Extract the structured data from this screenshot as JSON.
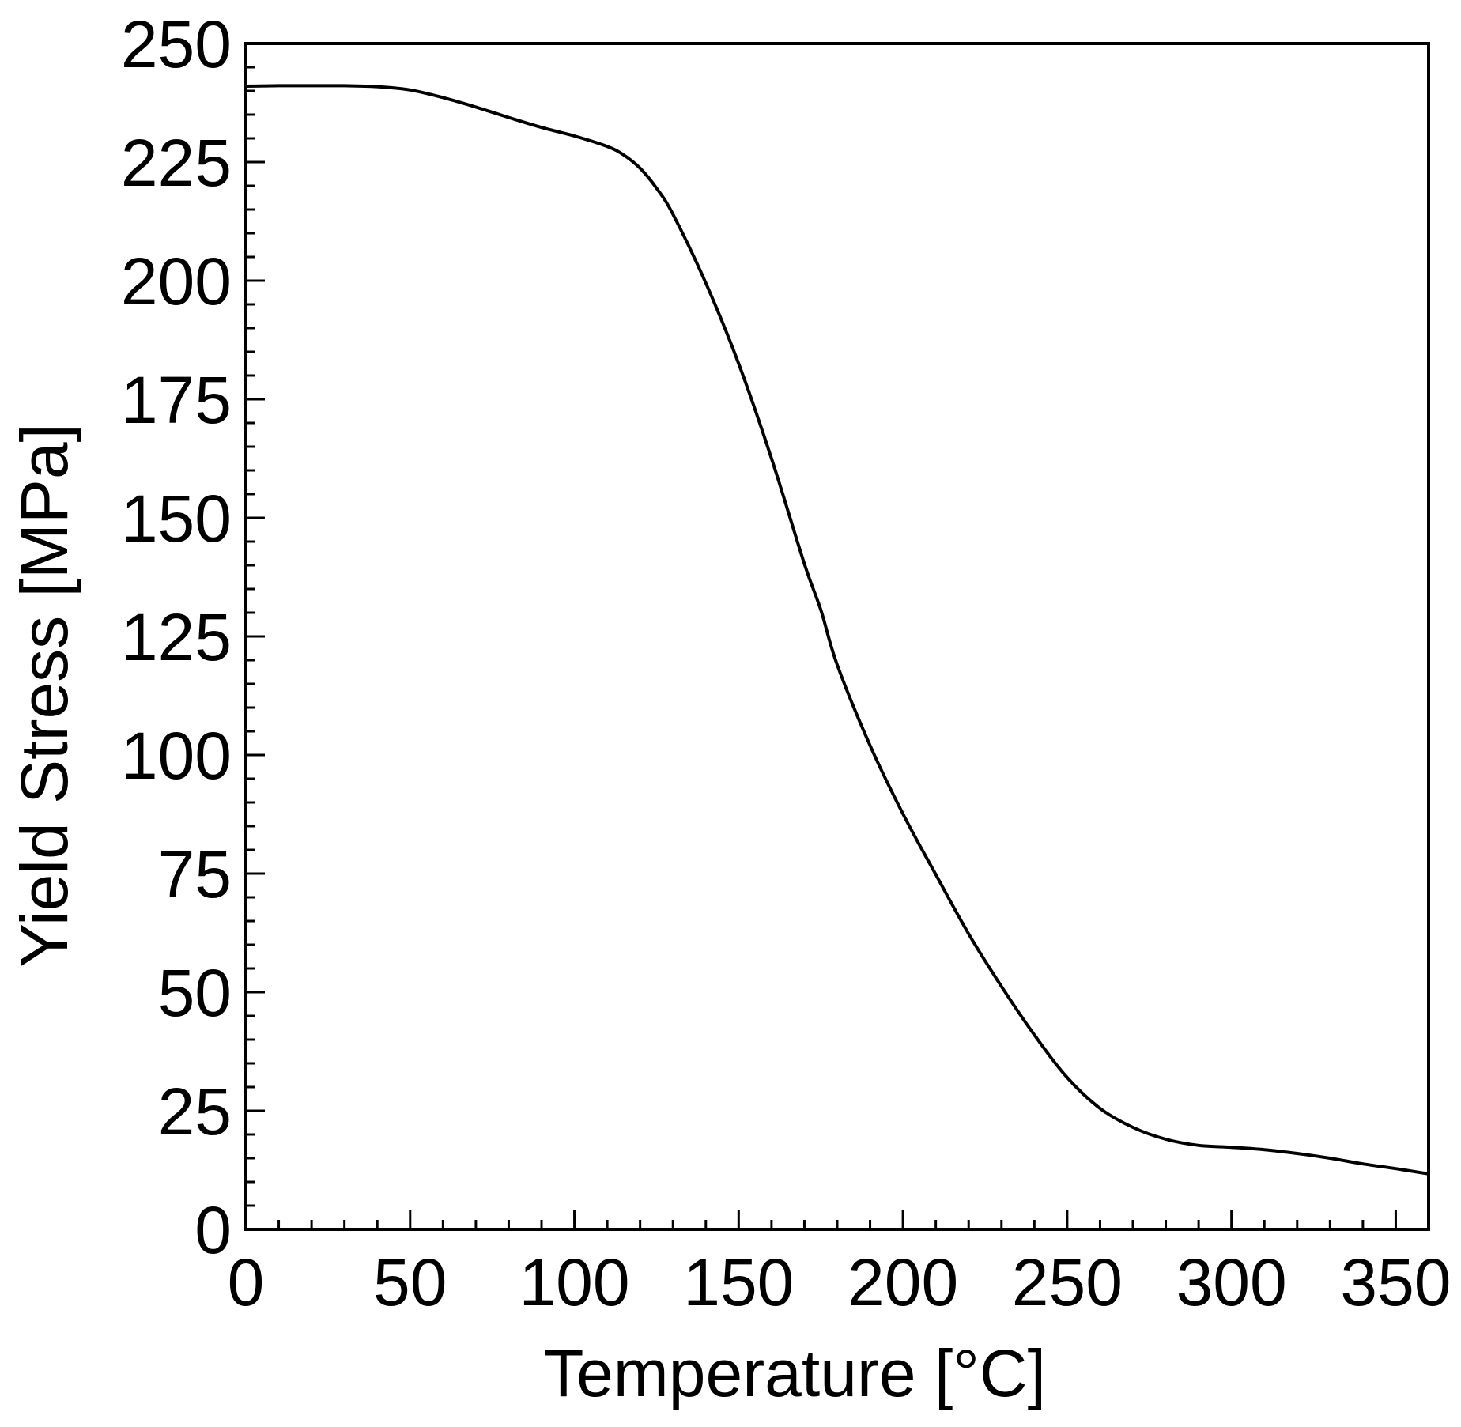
{
  "chart_data": {
    "type": "line",
    "xlabel": "Temperature [°C]",
    "ylabel": "Yield Stress [MPa]",
    "xlim": [
      0,
      360
    ],
    "ylim": [
      0,
      250
    ],
    "x_ticks": [
      "0",
      "50",
      "100",
      "150",
      "200",
      "250",
      "300",
      "350"
    ],
    "y_ticks": [
      "0",
      "25",
      "50",
      "75",
      "100",
      "125",
      "150",
      "175",
      "200",
      "225",
      "250"
    ],
    "x_tick_values": [
      0,
      50,
      100,
      150,
      200,
      250,
      300,
      350
    ],
    "y_tick_values": [
      0,
      25,
      50,
      75,
      100,
      125,
      150,
      175,
      200,
      225,
      250
    ],
    "x_minor_step": 10,
    "y_minor_step": 5,
    "grid": false,
    "series": [
      {
        "color": "#000000",
        "x": [
          0,
          10,
          20,
          30,
          40,
          50,
          60,
          70,
          80,
          90,
          100,
          110,
          115,
          120,
          125,
          130,
          140,
          150,
          160,
          170,
          175,
          180,
          190,
          200,
          210,
          220,
          230,
          240,
          250,
          260,
          270,
          280,
          290,
          300,
          310,
          320,
          330,
          340,
          350,
          360
        ],
        "y": [
          241,
          241.1,
          241.1,
          241.1,
          240.9,
          240.2,
          238.6,
          236.6,
          234.4,
          232.3,
          230.5,
          228.3,
          226.5,
          223.7,
          219.5,
          214,
          199.5,
          182.5,
          162.5,
          140.3,
          130.6,
          119,
          102,
          87.6,
          74.8,
          62.3,
          51.2,
          41,
          32,
          25.5,
          21.5,
          19,
          17.7,
          17.3,
          16.8,
          16,
          15,
          13.8,
          12.8,
          11.7
        ]
      }
    ]
  }
}
